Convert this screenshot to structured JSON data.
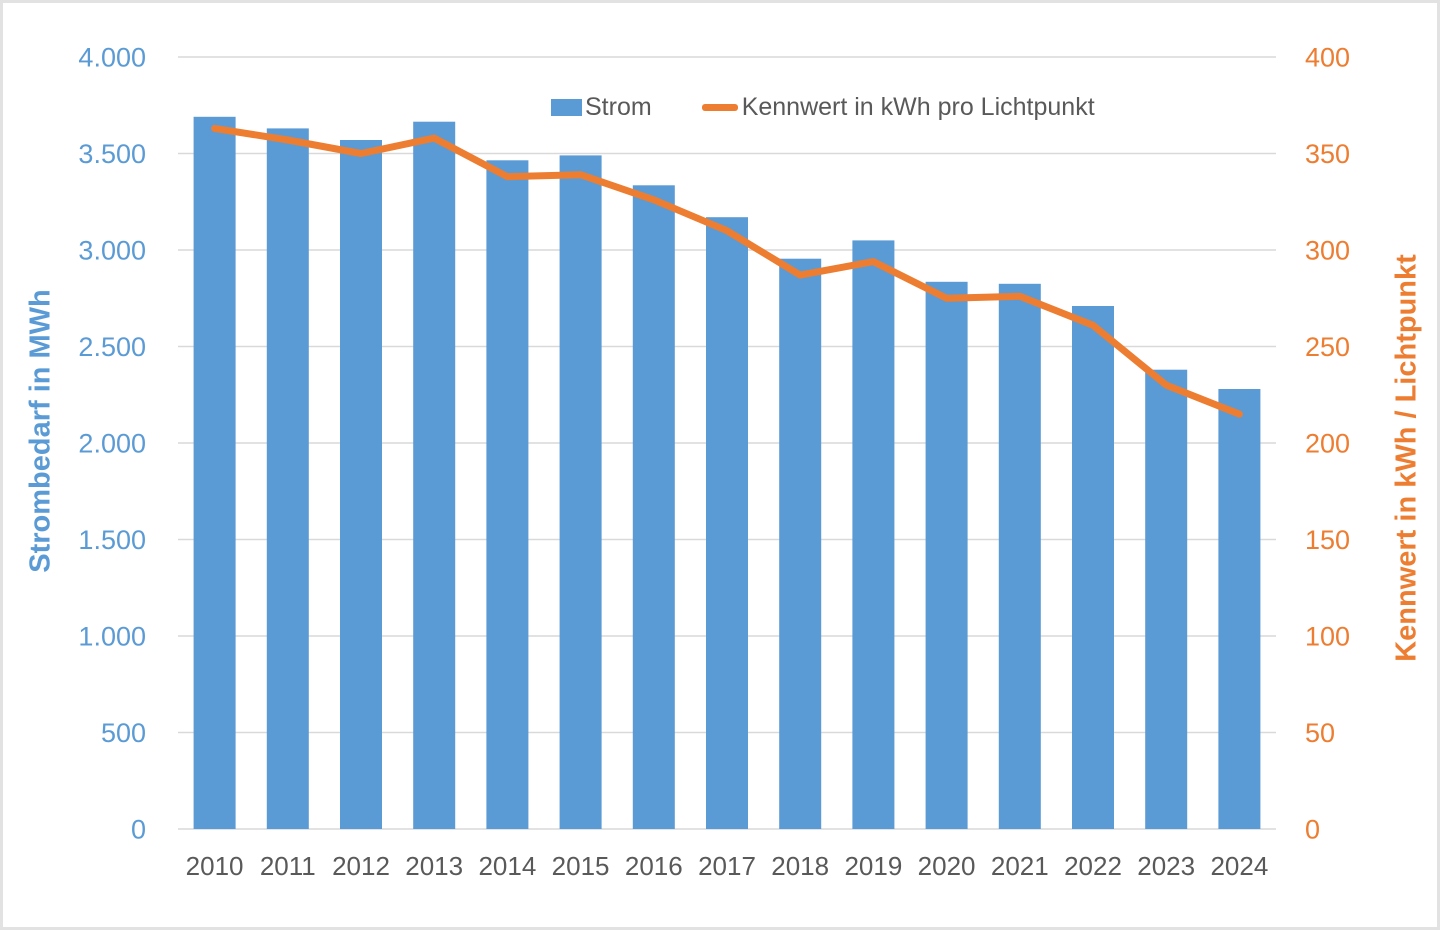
{
  "chart_data": {
    "type": "combo-bar-line",
    "title": "",
    "categories": [
      "2010",
      "2011",
      "2012",
      "2013",
      "2014",
      "2015",
      "2016",
      "2017",
      "2018",
      "2019",
      "2020",
      "2021",
      "2022",
      "2023",
      "2024"
    ],
    "series": [
      {
        "name": "Strom",
        "type": "bar",
        "axis": "left",
        "color": "#5B9BD5",
        "values": [
          3690,
          3630,
          3570,
          3665,
          3465,
          3490,
          3335,
          3170,
          2955,
          3050,
          2835,
          2825,
          2710,
          2380,
          2280
        ]
      },
      {
        "name": "Kennwert in kWh pro Lichtpunkt",
        "type": "line",
        "axis": "right",
        "color": "#ED7D31",
        "values": [
          363,
          357,
          350,
          358,
          338,
          339,
          326,
          310,
          287,
          294,
          275,
          276,
          261,
          230,
          215
        ]
      }
    ],
    "left_axis": {
      "title": "Strombedarf in MWh",
      "min": 0,
      "max": 4000,
      "step": 500,
      "color": "#5B9BD5",
      "tick_labels": [
        "0",
        "500",
        "1.000",
        "1.500",
        "2.000",
        "2.500",
        "3.000",
        "3.500",
        "4.000"
      ]
    },
    "right_axis": {
      "title": "Kennwert in kWh / Lichtpunkt",
      "min": 0,
      "max": 400,
      "step": 50,
      "color": "#ED7D31",
      "tick_labels": [
        "0",
        "50",
        "100",
        "150",
        "200",
        "250",
        "300",
        "350",
        "400"
      ]
    },
    "x_axis": {
      "label_color": "#595959"
    },
    "grid": {
      "show": true,
      "color": "#D9D9D9"
    },
    "legend_position": "top"
  }
}
